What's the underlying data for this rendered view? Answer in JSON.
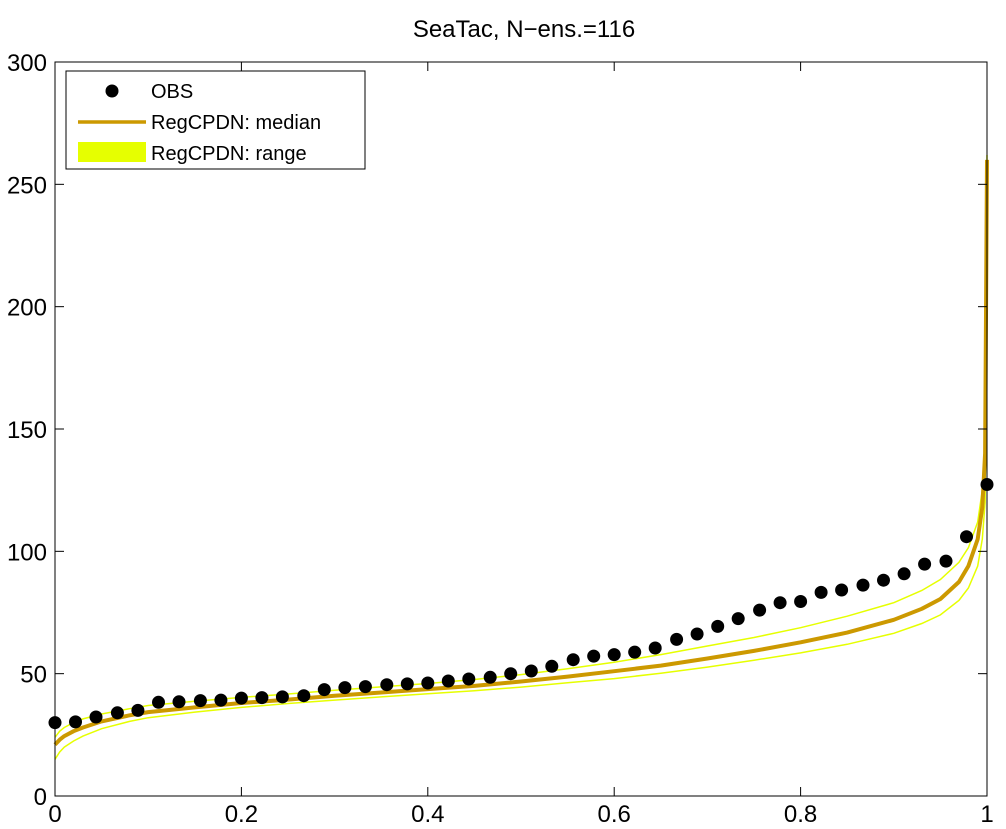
{
  "chart_data": {
    "type": "line",
    "title": "SeaTac, N−ens.=116",
    "xlabel": "",
    "ylabel": "",
    "xlim": [
      0,
      1
    ],
    "ylim": [
      0,
      300
    ],
    "xticks": [
      0,
      0.2,
      0.4,
      0.6,
      0.8,
      1
    ],
    "xtick_labels": [
      "0",
      "0.2",
      "0.4",
      "0.6",
      "0.8",
      "1"
    ],
    "yticks": [
      0,
      50,
      100,
      150,
      200,
      250,
      300
    ],
    "ytick_labels": [
      "0",
      "50",
      "100",
      "150",
      "200",
      "250",
      "300"
    ],
    "grid": false,
    "legend_position": "top-left",
    "colors": {
      "obs": "#000000",
      "median": "#cc9900",
      "range": "#e6ff00"
    },
    "series": [
      {
        "name": "OBS",
        "kind": "scatter",
        "x": [
          0,
          0.022,
          0.044,
          0.067,
          0.089,
          0.111,
          0.133,
          0.156,
          0.178,
          0.2,
          0.222,
          0.244,
          0.267,
          0.289,
          0.311,
          0.333,
          0.356,
          0.378,
          0.4,
          0.422,
          0.444,
          0.467,
          0.489,
          0.511,
          0.533,
          0.556,
          0.578,
          0.6,
          0.622,
          0.644,
          0.667,
          0.689,
          0.711,
          0.733,
          0.756,
          0.778,
          0.8,
          0.822,
          0.844,
          0.867,
          0.889,
          0.911,
          0.933,
          0.956,
          0.978,
          1.0
        ],
        "y": [
          30,
          30.3,
          32.3,
          34,
          35,
          38.3,
          38.5,
          39,
          39.2,
          40,
          40.2,
          40.5,
          41,
          43.5,
          44.3,
          44.7,
          45.5,
          45.8,
          46.2,
          47,
          47.8,
          48.5,
          50,
          51.1,
          53,
          55.7,
          57.2,
          57.8,
          58.8,
          60.5,
          64,
          66.2,
          69.3,
          72.5,
          76,
          79,
          79.5,
          83.2,
          84.2,
          86.2,
          88.2,
          90.8,
          94.8,
          96,
          106,
          127.3
        ]
      },
      {
        "name": "RegCPDN: median",
        "kind": "line",
        "x": [
          0,
          0.005,
          0.01,
          0.02,
          0.03,
          0.05,
          0.08,
          0.1,
          0.15,
          0.2,
          0.25,
          0.3,
          0.35,
          0.4,
          0.45,
          0.5,
          0.55,
          0.6,
          0.65,
          0.7,
          0.75,
          0.8,
          0.85,
          0.9,
          0.93,
          0.95,
          0.97,
          0.98,
          0.99,
          0.995,
          0.998,
          1.0
        ],
        "y": [
          21,
          23,
          24.5,
          26.5,
          28,
          30.5,
          33,
          34.3,
          36.2,
          38,
          39.4,
          41,
          42.3,
          43.7,
          45,
          46.8,
          48.8,
          51,
          53.3,
          56.2,
          59.3,
          62.8,
          66.8,
          72,
          76.5,
          80.5,
          87.5,
          94,
          105,
          118,
          140,
          260
        ]
      },
      {
        "name": "RegCPDN: range",
        "kind": "band",
        "x": [
          0,
          0.005,
          0.01,
          0.02,
          0.03,
          0.05,
          0.08,
          0.1,
          0.15,
          0.2,
          0.25,
          0.3,
          0.35,
          0.4,
          0.45,
          0.5,
          0.55,
          0.6,
          0.65,
          0.7,
          0.75,
          0.8,
          0.85,
          0.9,
          0.93,
          0.95,
          0.97,
          0.98,
          0.99,
          0.995,
          0.998,
          1.0
        ],
        "lower": [
          15,
          18,
          20,
          22.5,
          24.5,
          27.5,
          30.5,
          32,
          34.3,
          36.2,
          37.8,
          39.2,
          40.5,
          41.8,
          43,
          44.5,
          46.3,
          48,
          50.2,
          52.7,
          55.5,
          58.5,
          62,
          66.5,
          70.5,
          74,
          80,
          85,
          94,
          105,
          120,
          205
        ],
        "upper": [
          24,
          26.5,
          28,
          30,
          31.5,
          33.5,
          35.7,
          37,
          38.7,
          40.3,
          41.7,
          43.2,
          44.6,
          46,
          47.6,
          49.6,
          52,
          54.7,
          57.8,
          61.3,
          64.8,
          68.8,
          73.5,
          79,
          84,
          88.5,
          95.5,
          101.5,
          112,
          125,
          145,
          262
        ]
      }
    ]
  },
  "legend": {
    "items": [
      {
        "label": "OBS"
      },
      {
        "label": "RegCPDN: median"
      },
      {
        "label": "RegCPDN: range"
      }
    ]
  }
}
